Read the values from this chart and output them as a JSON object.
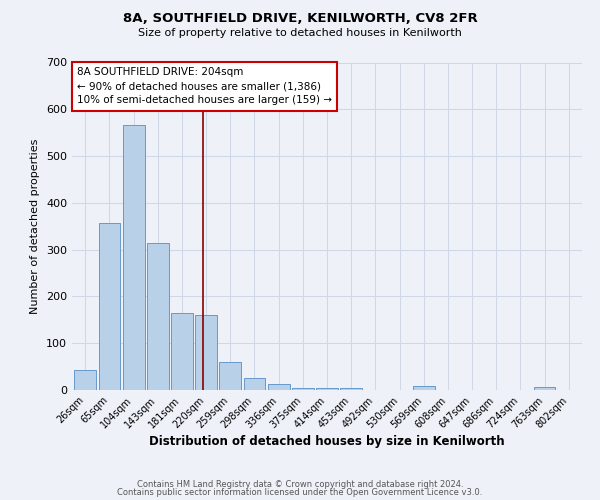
{
  "title": "8A, SOUTHFIELD DRIVE, KENILWORTH, CV8 2FR",
  "subtitle": "Size of property relative to detached houses in Kenilworth",
  "xlabel": "Distribution of detached houses by size in Kenilworth",
  "ylabel": "Number of detached properties",
  "categories": [
    "26sqm",
    "65sqm",
    "104sqm",
    "143sqm",
    "181sqm",
    "220sqm",
    "259sqm",
    "298sqm",
    "336sqm",
    "375sqm",
    "414sqm",
    "453sqm",
    "492sqm",
    "530sqm",
    "569sqm",
    "608sqm",
    "647sqm",
    "686sqm",
    "724sqm",
    "763sqm",
    "802sqm"
  ],
  "values": [
    42,
    357,
    566,
    315,
    165,
    160,
    60,
    25,
    12,
    5,
    5,
    5,
    0,
    0,
    8,
    0,
    0,
    0,
    0,
    7,
    0
  ],
  "bar_color": "#b8d0e8",
  "bar_edge_color": "#6699cc",
  "background_color": "#eef2f8",
  "grid_color": "#d0d8e8",
  "vline_x_index": 4.85,
  "vline_color": "#8b0000",
  "annotation_text": "8A SOUTHFIELD DRIVE: 204sqm\n← 90% of detached houses are smaller (1,386)\n10% of semi-detached houses are larger (159) →",
  "annotation_box_color": "#ffffff",
  "annotation_box_edge": "#cc0000",
  "footer_line1": "Contains HM Land Registry data © Crown copyright and database right 2024.",
  "footer_line2": "Contains public sector information licensed under the Open Government Licence v3.0.",
  "ylim": [
    0,
    700
  ],
  "yticks": [
    0,
    100,
    200,
    300,
    400,
    500,
    600,
    700
  ]
}
